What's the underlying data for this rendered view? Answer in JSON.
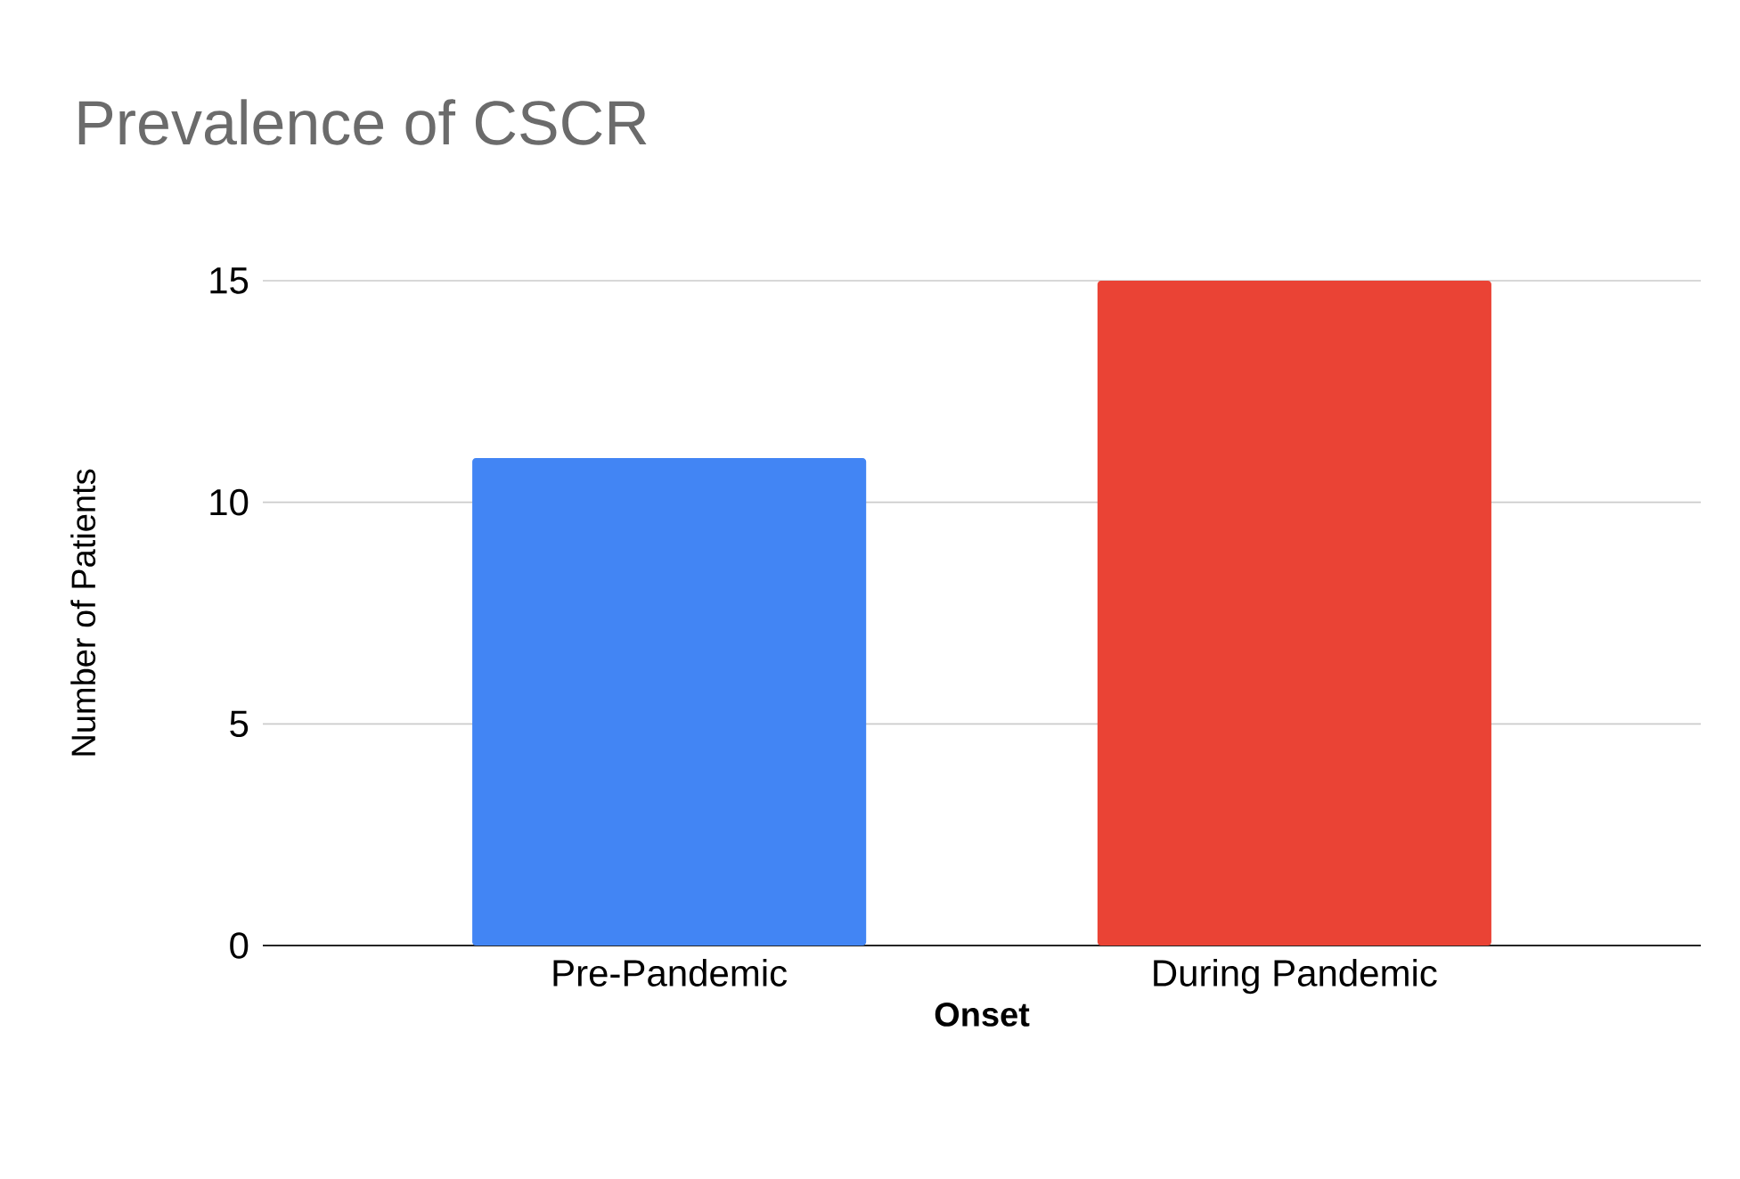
{
  "chart_data": {
    "type": "bar",
    "title": "Prevalence of CSCR",
    "xlabel": "Onset",
    "ylabel": "Number of Patients",
    "categories": [
      "Pre-Pandemic",
      "During Pandemic"
    ],
    "values": [
      11,
      15
    ],
    "colors": [
      "#4285f4",
      "#ea4335"
    ],
    "ylim": [
      0,
      15
    ],
    "yticks": [
      0,
      5,
      10,
      15
    ],
    "grid": "y"
  }
}
